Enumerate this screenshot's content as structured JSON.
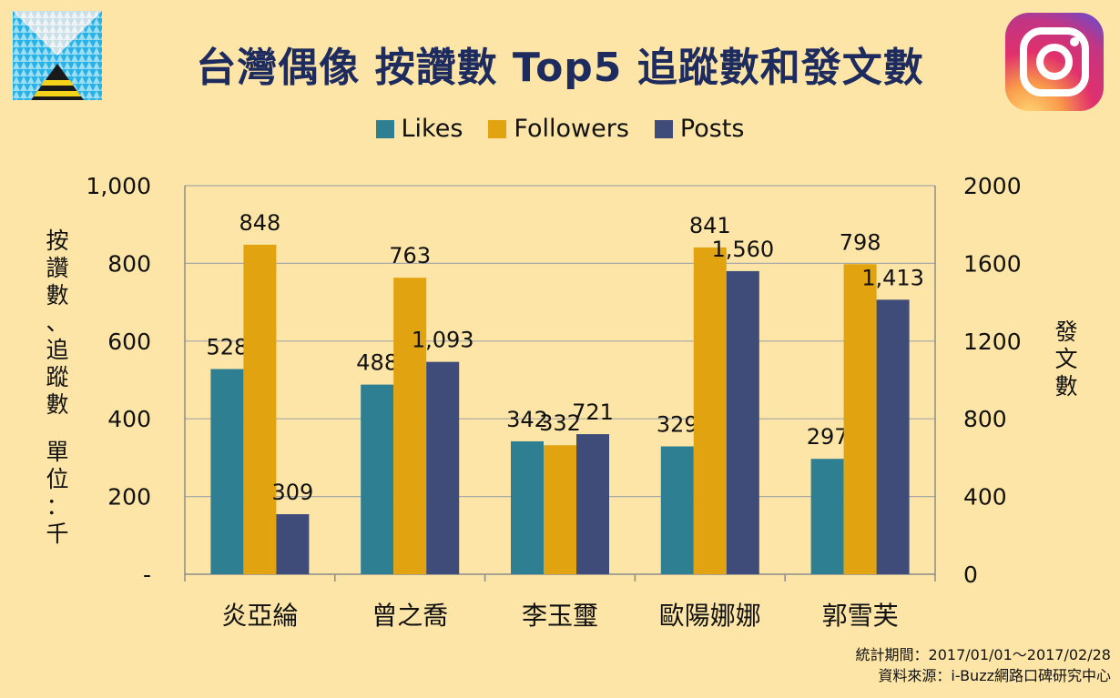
{
  "title": "台灣偶像 按讚數 Top5 追蹤數和發文數",
  "logos": {
    "left": "ibuzz-logo",
    "right": "instagram-logo"
  },
  "colors": {
    "background": "#FCE5A6",
    "likes": "#2F7F93",
    "followers": "#E1A30F",
    "posts": "#3F4C79",
    "title": "#1D2B5E"
  },
  "legend": [
    {
      "label": "Likes",
      "color": "#2F7F93"
    },
    {
      "label": "Followers",
      "color": "#E1A30F"
    },
    {
      "label": "Posts",
      "color": "#3F4C79"
    }
  ],
  "left_axis_label": "按讚數、追蹤數　單位：千",
  "right_axis_label": "發文數",
  "footer": {
    "period": "統計期間：2017/01/01～2017/02/28",
    "source": "資料來源：i-Buzz網路口碑研究中心"
  },
  "chart_data": {
    "type": "bar",
    "categories": [
      "炎亞綸",
      "曾之喬",
      "李玉璽",
      "歐陽娜娜",
      "郭雪芙"
    ],
    "series": [
      {
        "name": "Likes",
        "axis": "left",
        "values": [
          528,
          488,
          342,
          329,
          297
        ],
        "labels": [
          "528",
          "488",
          "342",
          "329",
          "297"
        ]
      },
      {
        "name": "Followers",
        "axis": "left",
        "values": [
          848,
          763,
          332,
          841,
          798
        ],
        "labels": [
          "848",
          "763",
          "332",
          "841",
          "798"
        ]
      },
      {
        "name": "Posts",
        "axis": "right",
        "values": [
          309,
          1093,
          721,
          1560,
          1413
        ],
        "labels": [
          "309",
          "1,093",
          "721",
          "1,560",
          "1,413"
        ]
      }
    ],
    "left_axis": {
      "ylim": [
        0,
        1000
      ],
      "ticks": [
        0,
        200,
        400,
        600,
        800,
        1000
      ],
      "tick_labels": [
        "-",
        "200",
        "400",
        "600",
        "800",
        "1,000"
      ]
    },
    "right_axis": {
      "ylim": [
        0,
        2000
      ],
      "ticks": [
        0,
        400,
        800,
        1200,
        1600,
        2000
      ],
      "tick_labels": [
        "0",
        "400",
        "800",
        "1200",
        "1600",
        "2000"
      ]
    },
    "grid": true
  }
}
